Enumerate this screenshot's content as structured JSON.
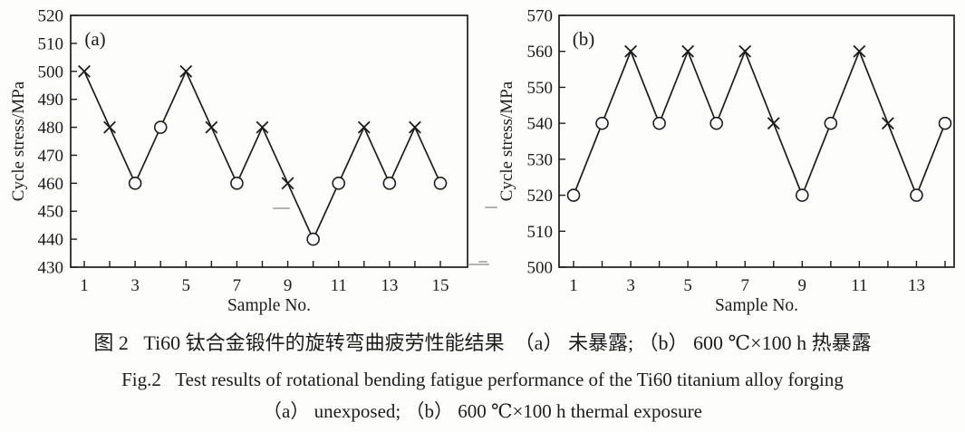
{
  "colors": {
    "line": "#1c1c1c",
    "text": "#1c1c1c",
    "marker_fill": "#ffffff",
    "background": "#fdfdfc"
  },
  "chart_data": [
    {
      "type": "line",
      "panel_label": "(a)",
      "xlabel": "Sample No.",
      "ylabel": "Cycle stress/MPa",
      "ylim": [
        430,
        520
      ],
      "ytick_step": 10,
      "x": [
        1,
        2,
        3,
        4,
        5,
        6,
        7,
        8,
        9,
        10,
        11,
        12,
        13,
        14,
        15
      ],
      "values": [
        500,
        480,
        460,
        480,
        500,
        480,
        460,
        480,
        460,
        440,
        460,
        480,
        460,
        480,
        460
      ],
      "markers": [
        "x",
        "x",
        "o",
        "o",
        "x",
        "x",
        "o",
        "x",
        "x",
        "o",
        "o",
        "x",
        "o",
        "x",
        "o"
      ],
      "xtick_labels": [
        1,
        3,
        5,
        7,
        9,
        11,
        13,
        15
      ],
      "grid": false,
      "legend": "none"
    },
    {
      "type": "line",
      "panel_label": "(b)",
      "xlabel": "Sample No.",
      "ylabel": "Cycle stress/MPa",
      "ylim": [
        500,
        570
      ],
      "ytick_step": 10,
      "x": [
        1,
        2,
        3,
        4,
        5,
        6,
        7,
        8,
        9,
        10,
        11,
        12,
        13,
        14
      ],
      "values": [
        520,
        540,
        560,
        540,
        560,
        540,
        560,
        540,
        520,
        540,
        560,
        540,
        520,
        540
      ],
      "markers": [
        "o",
        "o",
        "x",
        "o",
        "x",
        "o",
        "x",
        "x",
        "o",
        "o",
        "x",
        "x",
        "o",
        "o"
      ],
      "xtick_labels": [
        1,
        3,
        5,
        7,
        9,
        11,
        13
      ],
      "grid": false,
      "legend": "none"
    }
  ],
  "caption": {
    "line1_zh": "图 2   Ti60 钛合金锻件的旋转弯曲疲劳性能结果  （a） 未暴露; （b） 600 ℃×100 h 热暴露",
    "line2_en": "Fig.2   Test results of rotational bending fatigue performance of the Ti60 titanium alloy forging",
    "line3_en": "（a） unexposed; （b） 600 ℃×100 h thermal exposure"
  }
}
